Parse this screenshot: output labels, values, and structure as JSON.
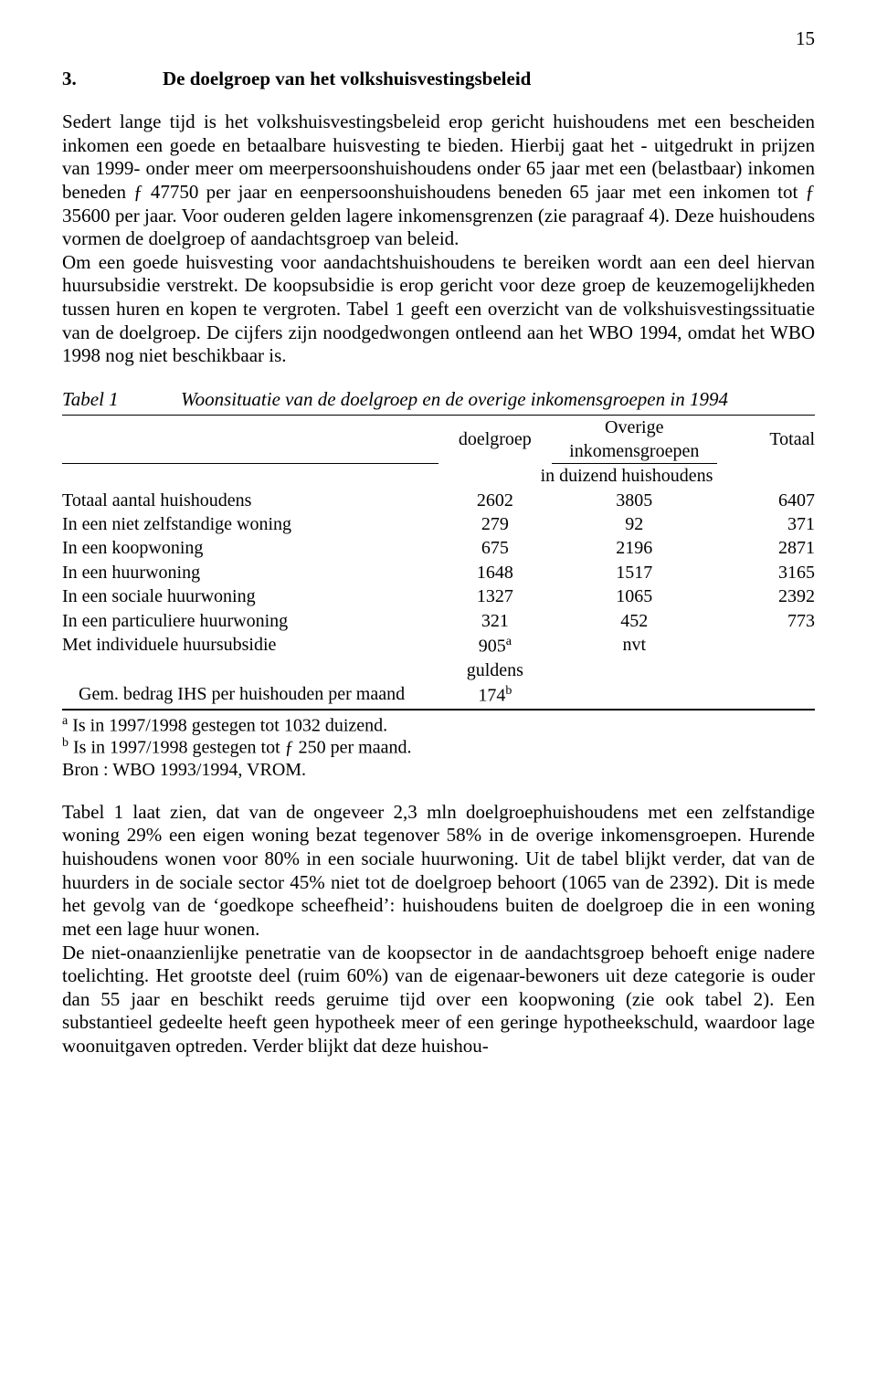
{
  "page_number": "15",
  "heading": {
    "num": "3.",
    "title": "De doelgroep van het volkshuisvestingsbeleid"
  },
  "para1": "Sedert lange tijd is het volkshuisvestingsbeleid erop gericht huishoudens met een bescheiden inkomen een goede en betaalbare huisvesting te bieden. Hierbij gaat het - uitgedrukt in prijzen van 1999- onder meer om meerpersoonshuishoudens onder 65 jaar met een (belastbaar) inkomen beneden ƒ 47750 per jaar en eenpersoonshuishoudens beneden 65 jaar met een inkomen tot ƒ 35600 per jaar. Voor ouderen gelden lagere inkomensgrenzen (zie paragraaf 4). Deze huishoudens vormen de doelgroep of aandachtsgroep van beleid.",
  "para2": "Om een goede huisvesting voor aandachtshuishoudens te bereiken wordt aan een deel hiervan huursubsidie verstrekt. De koopsubsidie is erop gericht voor deze groep de keuzemogelijkheden tussen huren en kopen te vergroten. Tabel 1 geeft een overzicht van de volkshuisvestingssituatie van de doelgroep. De cijfers zijn noodgedwongen ontleend aan het WBO 1994, omdat het WBO 1998 nog niet beschikbaar is.",
  "table": {
    "caption_label": "Tabel 1",
    "caption_text": "Woonsituatie van de doelgroep en de overige inkomensgroepen in 1994",
    "head": {
      "c1": "doelgroep",
      "c2a": "Overige",
      "c2b": "inkomensgroepen",
      "c3": "Totaal"
    },
    "unit": "in duizend huishoudens",
    "rows": [
      {
        "label": "Totaal aantal huishoudens",
        "a": "2602",
        "b": "3805",
        "c": "6407"
      },
      {
        "label": "In een niet zelfstandige woning",
        "a": "279",
        "b": "92",
        "c": "371"
      },
      {
        "label": "In een koopwoning",
        "a": "675",
        "b": "2196",
        "c": "2871"
      },
      {
        "label": "In een huurwoning",
        "a": "1648",
        "b": "1517",
        "c": "3165"
      },
      {
        "label": "In een sociale huurwoning",
        "a": "1327",
        "b": "1065",
        "c": "2392"
      },
      {
        "label": "In een particuliere huurwoning",
        "a": "321",
        "b": "452",
        "c": "773"
      },
      {
        "label": "Met individuele huursubsidie",
        "a": "905",
        "a_sup": "a",
        "b": "nvt",
        "c": ""
      }
    ],
    "unit2": "guldens",
    "row_last": {
      "label": "Gem. bedrag IHS per huishouden per maand",
      "a": "174",
      "a_sup": "b",
      "b": "",
      "c": ""
    }
  },
  "notes": {
    "a": "Is in 1997/1998 gestegen tot 1032 duizend.",
    "b": "Is in 1997/1998 gestegen tot ƒ 250 per maand.",
    "src": "Bron : WBO 1993/1994, VROM."
  },
  "para3": "Tabel 1 laat zien, dat van de ongeveer 2,3 mln doelgroephuishoudens met een zelfstandige woning 29% een eigen woning bezat tegenover 58% in de overige inkomensgroepen. Hurende huishoudens wonen voor 80% in een sociale huurwoning. Uit de tabel blijkt verder, dat van de huurders in de sociale sector 45% niet tot de doelgroep behoort (1065 van de 2392). Dit is mede het gevolg van de ‘goedkope scheefheid’: huishoudens buiten de doelgroep die in een woning met een lage huur wonen.",
  "para4": "De niet-onaanzienlijke penetratie van de koopsector in de aandachtsgroep behoeft enige nadere toelichting. Het grootste deel (ruim 60%) van de eigenaar-bewoners uit deze categorie is ouder dan 55 jaar en beschikt reeds geruime tijd over een koopwoning (zie ook tabel 2). Een substantieel gedeelte heeft geen hypotheek meer of een geringe hypotheekschuld, waardoor lage woonuitgaven optreden. Verder blijkt dat deze huishou-"
}
